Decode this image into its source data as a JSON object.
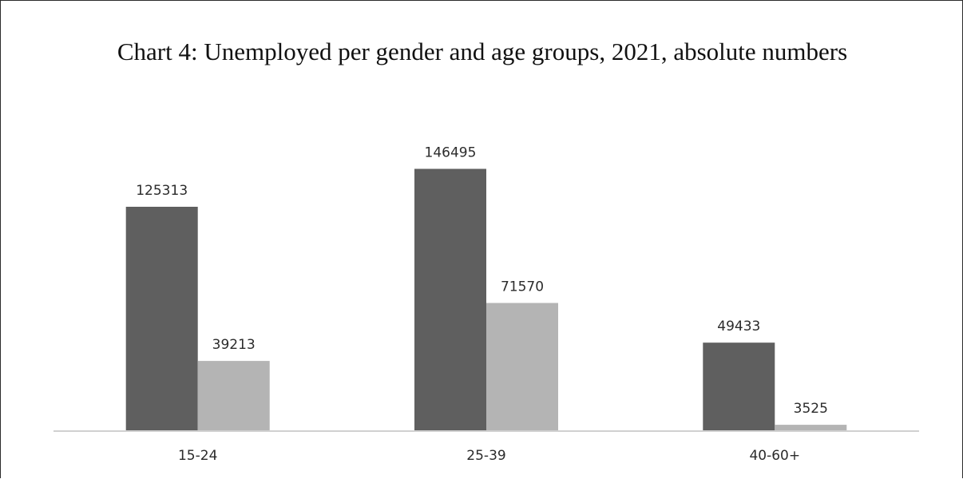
{
  "chart_data": {
    "type": "bar",
    "title": "Chart 4: Unemployed per gender and age groups, 2021, absolute numbers",
    "categories": [
      "15-24",
      "25-39",
      "40-60+"
    ],
    "series": [
      {
        "values": [
          125313,
          146495,
          49433
        ],
        "color": "#5f5f5f"
      },
      {
        "values": [
          39213,
          71570,
          3525
        ],
        "color": "#b4b4b4"
      }
    ],
    "ylim": [
      0,
      190000
    ],
    "legend": "none",
    "grid": false
  }
}
